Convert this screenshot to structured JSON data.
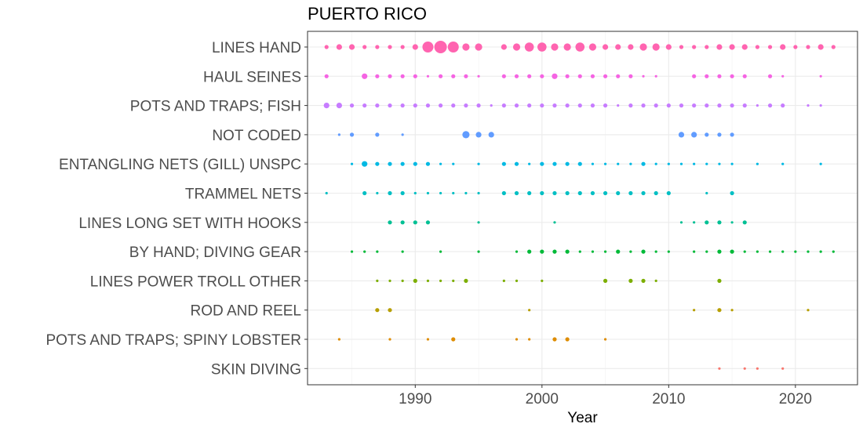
{
  "chart_data": {
    "type": "scatter",
    "title": "PUERTO RICO",
    "xlabel": "Year",
    "ylabel": "",
    "xlim": [
      1981.5,
      2024.9
    ],
    "x_ticks": [
      1990,
      2000,
      2010,
      2020
    ],
    "grid": true,
    "legend": "none",
    "categories": [
      "LINES HAND",
      "HAUL SEINES",
      "POTS AND TRAPS; FISH",
      "NOT CODED",
      "ENTANGLING NETS (GILL) UNSPC",
      "TRAMMEL NETS",
      "LINES LONG SET WITH HOOKS",
      "BY HAND; DIVING GEAR",
      "LINES POWER TROLL OTHER",
      "ROD AND REEL",
      "POTS AND TRAPS; SPINY LOBSTER",
      "SKIN DIVING"
    ],
    "series": [
      {
        "category": "LINES HAND",
        "color": "#ff64b0",
        "points": [
          [
            1983,
            2
          ],
          [
            1984,
            3
          ],
          [
            1985,
            3
          ],
          [
            1986,
            2
          ],
          [
            1987,
            2
          ],
          [
            1988,
            2
          ],
          [
            1989,
            2
          ],
          [
            1990,
            3
          ],
          [
            1991,
            6
          ],
          [
            1992,
            7
          ],
          [
            1993,
            6
          ],
          [
            1994,
            4
          ],
          [
            1995,
            4
          ],
          [
            1997,
            3
          ],
          [
            1998,
            4
          ],
          [
            1999,
            5
          ],
          [
            2000,
            5
          ],
          [
            2001,
            4
          ],
          [
            2002,
            4
          ],
          [
            2003,
            5
          ],
          [
            2004,
            4
          ],
          [
            2005,
            3
          ],
          [
            2006,
            3
          ],
          [
            2007,
            3
          ],
          [
            2008,
            4
          ],
          [
            2009,
            4
          ],
          [
            2010,
            3
          ],
          [
            2011,
            2
          ],
          [
            2012,
            2
          ],
          [
            2013,
            2
          ],
          [
            2014,
            3
          ],
          [
            2015,
            3
          ],
          [
            2016,
            3
          ],
          [
            2017,
            2
          ],
          [
            2018,
            2
          ],
          [
            2019,
            3
          ],
          [
            2020,
            2
          ],
          [
            2021,
            2
          ],
          [
            2022,
            3
          ],
          [
            2023,
            2
          ]
        ]
      },
      {
        "category": "HAUL SEINES",
        "color": "#f564e3",
        "points": [
          [
            1983,
            2
          ],
          [
            1986,
            3
          ],
          [
            1987,
            2
          ],
          [
            1988,
            2
          ],
          [
            1989,
            2
          ],
          [
            1990,
            2
          ],
          [
            1991,
            1
          ],
          [
            1992,
            2
          ],
          [
            1993,
            2
          ],
          [
            1994,
            2
          ],
          [
            1995,
            1
          ],
          [
            1997,
            2
          ],
          [
            1998,
            2
          ],
          [
            1999,
            2
          ],
          [
            2000,
            2
          ],
          [
            2001,
            3
          ],
          [
            2002,
            2
          ],
          [
            2003,
            2
          ],
          [
            2004,
            2
          ],
          [
            2005,
            2
          ],
          [
            2006,
            2
          ],
          [
            2007,
            2
          ],
          [
            2008,
            1
          ],
          [
            2009,
            1
          ],
          [
            2012,
            2
          ],
          [
            2013,
            2
          ],
          [
            2014,
            2
          ],
          [
            2015,
            2
          ],
          [
            2016,
            2
          ],
          [
            2018,
            2
          ],
          [
            2019,
            1
          ],
          [
            2022,
            1
          ]
        ]
      },
      {
        "category": "POTS AND TRAPS; FISH",
        "color": "#c77cff",
        "points": [
          [
            1983,
            3
          ],
          [
            1984,
            3
          ],
          [
            1985,
            2
          ],
          [
            1986,
            2
          ],
          [
            1987,
            2
          ],
          [
            1988,
            2
          ],
          [
            1989,
            2
          ],
          [
            1990,
            2
          ],
          [
            1991,
            2
          ],
          [
            1992,
            2
          ],
          [
            1993,
            2
          ],
          [
            1994,
            2
          ],
          [
            1995,
            2
          ],
          [
            1996,
            1
          ],
          [
            1997,
            2
          ],
          [
            1998,
            2
          ],
          [
            1999,
            2
          ],
          [
            2000,
            2
          ],
          [
            2001,
            2
          ],
          [
            2002,
            2
          ],
          [
            2003,
            2
          ],
          [
            2004,
            2
          ],
          [
            2005,
            2
          ],
          [
            2006,
            1
          ],
          [
            2007,
            2
          ],
          [
            2008,
            2
          ],
          [
            2009,
            2
          ],
          [
            2010,
            2
          ],
          [
            2011,
            2
          ],
          [
            2012,
            2
          ],
          [
            2013,
            2
          ],
          [
            2014,
            2
          ],
          [
            2015,
            2
          ],
          [
            2016,
            2
          ],
          [
            2017,
            1
          ],
          [
            2018,
            2
          ],
          [
            2019,
            2
          ],
          [
            2021,
            1
          ],
          [
            2022,
            1
          ]
        ]
      },
      {
        "category": "NOT CODED",
        "color": "#619cff",
        "points": [
          [
            1984,
            1
          ],
          [
            1985,
            2
          ],
          [
            1987,
            2
          ],
          [
            1989,
            1
          ],
          [
            1994,
            4
          ],
          [
            1995,
            3
          ],
          [
            1996,
            3
          ],
          [
            2011,
            3
          ],
          [
            2012,
            3
          ],
          [
            2013,
            2
          ],
          [
            2014,
            2
          ],
          [
            2015,
            2
          ]
        ]
      },
      {
        "category": "ENTANGLING NETS (GILL) UNSPC",
        "color": "#00b9e3",
        "points": [
          [
            1985,
            1
          ],
          [
            1986,
            3
          ],
          [
            1987,
            2
          ],
          [
            1988,
            2
          ],
          [
            1989,
            2
          ],
          [
            1990,
            2
          ],
          [
            1991,
            2
          ],
          [
            1992,
            1
          ],
          [
            1993,
            1
          ],
          [
            1995,
            1
          ],
          [
            1997,
            2
          ],
          [
            1998,
            2
          ],
          [
            1999,
            1
          ],
          [
            2000,
            2
          ],
          [
            2001,
            2
          ],
          [
            2002,
            2
          ],
          [
            2003,
            2
          ],
          [
            2004,
            1
          ],
          [
            2005,
            1
          ],
          [
            2006,
            1
          ],
          [
            2007,
            1
          ],
          [
            2008,
            2
          ],
          [
            2009,
            1
          ],
          [
            2010,
            1
          ],
          [
            2011,
            1
          ],
          [
            2012,
            1
          ],
          [
            2013,
            1
          ],
          [
            2014,
            1
          ],
          [
            2015,
            1
          ],
          [
            2017,
            1
          ],
          [
            2019,
            1
          ],
          [
            2022,
            1
          ]
        ]
      },
      {
        "category": "TRAMMEL NETS",
        "color": "#00bfc4",
        "points": [
          [
            1983,
            1
          ],
          [
            1986,
            2
          ],
          [
            1987,
            1
          ],
          [
            1988,
            2
          ],
          [
            1989,
            2
          ],
          [
            1990,
            1
          ],
          [
            1991,
            1
          ],
          [
            1992,
            1
          ],
          [
            1993,
            1
          ],
          [
            1994,
            1
          ],
          [
            1995,
            1
          ],
          [
            1997,
            2
          ],
          [
            1998,
            2
          ],
          [
            1999,
            2
          ],
          [
            2000,
            2
          ],
          [
            2001,
            2
          ],
          [
            2002,
            2
          ],
          [
            2003,
            2
          ],
          [
            2004,
            2
          ],
          [
            2005,
            2
          ],
          [
            2006,
            2
          ],
          [
            2007,
            2
          ],
          [
            2008,
            2
          ],
          [
            2009,
            2
          ],
          [
            2010,
            2
          ],
          [
            2013,
            1
          ],
          [
            2015,
            2
          ]
        ]
      },
      {
        "category": "LINES LONG SET WITH HOOKS",
        "color": "#00c094",
        "points": [
          [
            1988,
            2
          ],
          [
            1989,
            2
          ],
          [
            1990,
            2
          ],
          [
            1991,
            2
          ],
          [
            1995,
            1
          ],
          [
            2001,
            1
          ],
          [
            2011,
            1
          ],
          [
            2012,
            1
          ],
          [
            2013,
            2
          ],
          [
            2014,
            2
          ],
          [
            2015,
            1
          ],
          [
            2016,
            2
          ]
        ]
      },
      {
        "category": "BY HAND; DIVING GEAR",
        "color": "#00ba38",
        "points": [
          [
            1985,
            1
          ],
          [
            1986,
            1
          ],
          [
            1987,
            1
          ],
          [
            1989,
            1
          ],
          [
            1992,
            1
          ],
          [
            1995,
            1
          ],
          [
            1998,
            1
          ],
          [
            1999,
            2
          ],
          [
            2000,
            2
          ],
          [
            2001,
            2
          ],
          [
            2002,
            2
          ],
          [
            2003,
            1
          ],
          [
            2004,
            1
          ],
          [
            2005,
            1
          ],
          [
            2006,
            2
          ],
          [
            2007,
            1
          ],
          [
            2008,
            2
          ],
          [
            2009,
            1
          ],
          [
            2010,
            1
          ],
          [
            2012,
            1
          ],
          [
            2013,
            1
          ],
          [
            2014,
            2
          ],
          [
            2015,
            2
          ],
          [
            2016,
            1
          ],
          [
            2017,
            1
          ],
          [
            2018,
            1
          ],
          [
            2019,
            1
          ],
          [
            2020,
            1
          ],
          [
            2021,
            1
          ],
          [
            2022,
            1
          ],
          [
            2023,
            1
          ]
        ]
      },
      {
        "category": "LINES POWER TROLL OTHER",
        "color": "#7cae00",
        "points": [
          [
            1987,
            1
          ],
          [
            1988,
            1
          ],
          [
            1989,
            1
          ],
          [
            1990,
            2
          ],
          [
            1991,
            1
          ],
          [
            1992,
            1
          ],
          [
            1993,
            1
          ],
          [
            1994,
            2
          ],
          [
            1997,
            1
          ],
          [
            1998,
            1
          ],
          [
            2000,
            1
          ],
          [
            2005,
            2
          ],
          [
            2007,
            2
          ],
          [
            2008,
            2
          ],
          [
            2009,
            1
          ],
          [
            2014,
            2
          ]
        ]
      },
      {
        "category": "ROD AND REEL",
        "color": "#b79f00",
        "points": [
          [
            1987,
            2
          ],
          [
            1988,
            2
          ],
          [
            1999,
            1
          ],
          [
            2012,
            1
          ],
          [
            2014,
            2
          ],
          [
            2015,
            1
          ],
          [
            2021,
            1
          ]
        ]
      },
      {
        "category": "POTS AND TRAPS; SPINY LOBSTER",
        "color": "#de8c00",
        "points": [
          [
            1984,
            1
          ],
          [
            1988,
            1
          ],
          [
            1991,
            1
          ],
          [
            1993,
            2
          ],
          [
            1998,
            1
          ],
          [
            1999,
            1
          ],
          [
            2001,
            2
          ],
          [
            2002,
            2
          ],
          [
            2005,
            1
          ]
        ]
      },
      {
        "category": "SKIN DIVING",
        "color": "#f8766d",
        "points": [
          [
            2014,
            1
          ],
          [
            2016,
            1
          ],
          [
            2017,
            1
          ],
          [
            2019,
            1
          ]
        ]
      }
    ]
  }
}
